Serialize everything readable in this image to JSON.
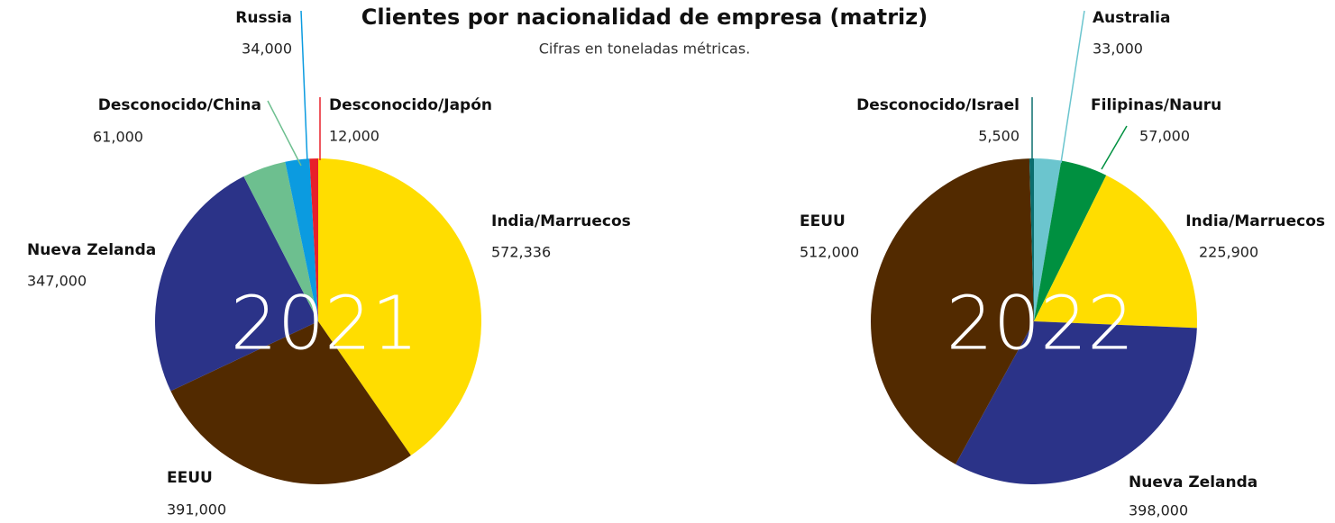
{
  "header": {
    "title": "Clientes por nacionalidad de empresa (matriz)",
    "subtitle": "Cifras en toneladas métricas."
  },
  "chart_data": [
    {
      "type": "pie",
      "title": "2021",
      "categories": [
        "India/Marruecos",
        "EEUU",
        "Nueva Zelanda",
        "Desconocido/China",
        "Russia",
        "Desconocido/Japón"
      ],
      "values": [
        572336,
        391000,
        347000,
        61000,
        34000,
        12000
      ],
      "value_labels": [
        "572,336",
        "391,000",
        "347,000",
        "61,000",
        "34,000",
        "12,000"
      ],
      "colors": [
        "#ffdd00",
        "#522a00",
        "#2b3388",
        "#6dbf8f",
        "#0b9be0",
        "#e8202a"
      ]
    },
    {
      "type": "pie",
      "title": "2022",
      "categories": [
        "Australia",
        "Filipinas/Nauru",
        "India/Marruecos",
        "Nueva Zelanda",
        "EEUU",
        "Desconocido/Israel"
      ],
      "values": [
        33000,
        57000,
        225900,
        398000,
        512000,
        5500
      ],
      "value_labels": [
        "33,000",
        "57,000",
        "225,900",
        "398,000",
        "512,000",
        "5,500"
      ],
      "colors": [
        "#6bc5ce",
        "#009040",
        "#ffdd00",
        "#2b3388",
        "#522a00",
        "#0b6e6e"
      ]
    }
  ]
}
